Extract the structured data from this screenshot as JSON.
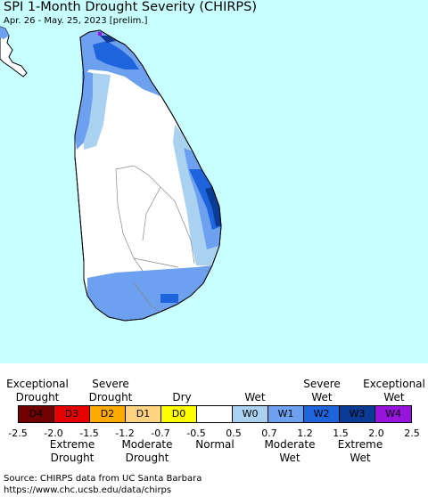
{
  "title": "SPI 1-Month Drought Severity (CHIRPS)",
  "subtitle": "Apr. 26 - May. 25, 2023 [prelim.]",
  "colors": {
    "ocean": "#c8ffff",
    "land": "#ffffff",
    "w0": "#aad2f0",
    "w1": "#6ea0f0",
    "w2": "#1e64dc",
    "w3": "#0a3c96",
    "w4": "#9614dc"
  },
  "legend": {
    "top_labels": {
      "exceptional_drought": "Exceptional\nDrought",
      "severe_drought": "Severe\nDrought",
      "dry": "Dry",
      "wet": "Wet",
      "severe_wet": "Severe\nWet",
      "exceptional_wet": "Exceptional\nWet"
    },
    "categories": [
      {
        "label": "D4",
        "color": "#730000"
      },
      {
        "label": "D3",
        "color": "#e60000"
      },
      {
        "label": "D2",
        "color": "#ffaa00"
      },
      {
        "label": "D1",
        "color": "#ffd37f"
      },
      {
        "label": "D0",
        "color": "#ffff00"
      },
      {
        "label": "",
        "color": "#ffffff"
      },
      {
        "label": "W0",
        "color": "#aad2f0"
      },
      {
        "label": "W1",
        "color": "#6ea0f0"
      },
      {
        "label": "W2",
        "color": "#1e64dc"
      },
      {
        "label": "W3",
        "color": "#0a3c96"
      },
      {
        "label": "W4",
        "color": "#9614dc"
      }
    ],
    "ticks": [
      "-2.5",
      "-2.0",
      "-1.5",
      "-1.2",
      "-0.7",
      "-0.5",
      "0.5",
      "0.7",
      "1.2",
      "1.5",
      "2.0",
      "2.5"
    ],
    "bottom_labels": {
      "extreme_drought": "Extreme\nDrought",
      "moderate_drought": "Moderate\nDrought",
      "normal": "Normal",
      "moderate_wet": "Moderate\nWet",
      "extreme_wet": "Extreme\nWet"
    }
  },
  "source": {
    "line1": "Source: CHIRPS data from UC Santa Barbara",
    "line2": "https://www.chc.ucsb.edu/data/chirps"
  }
}
